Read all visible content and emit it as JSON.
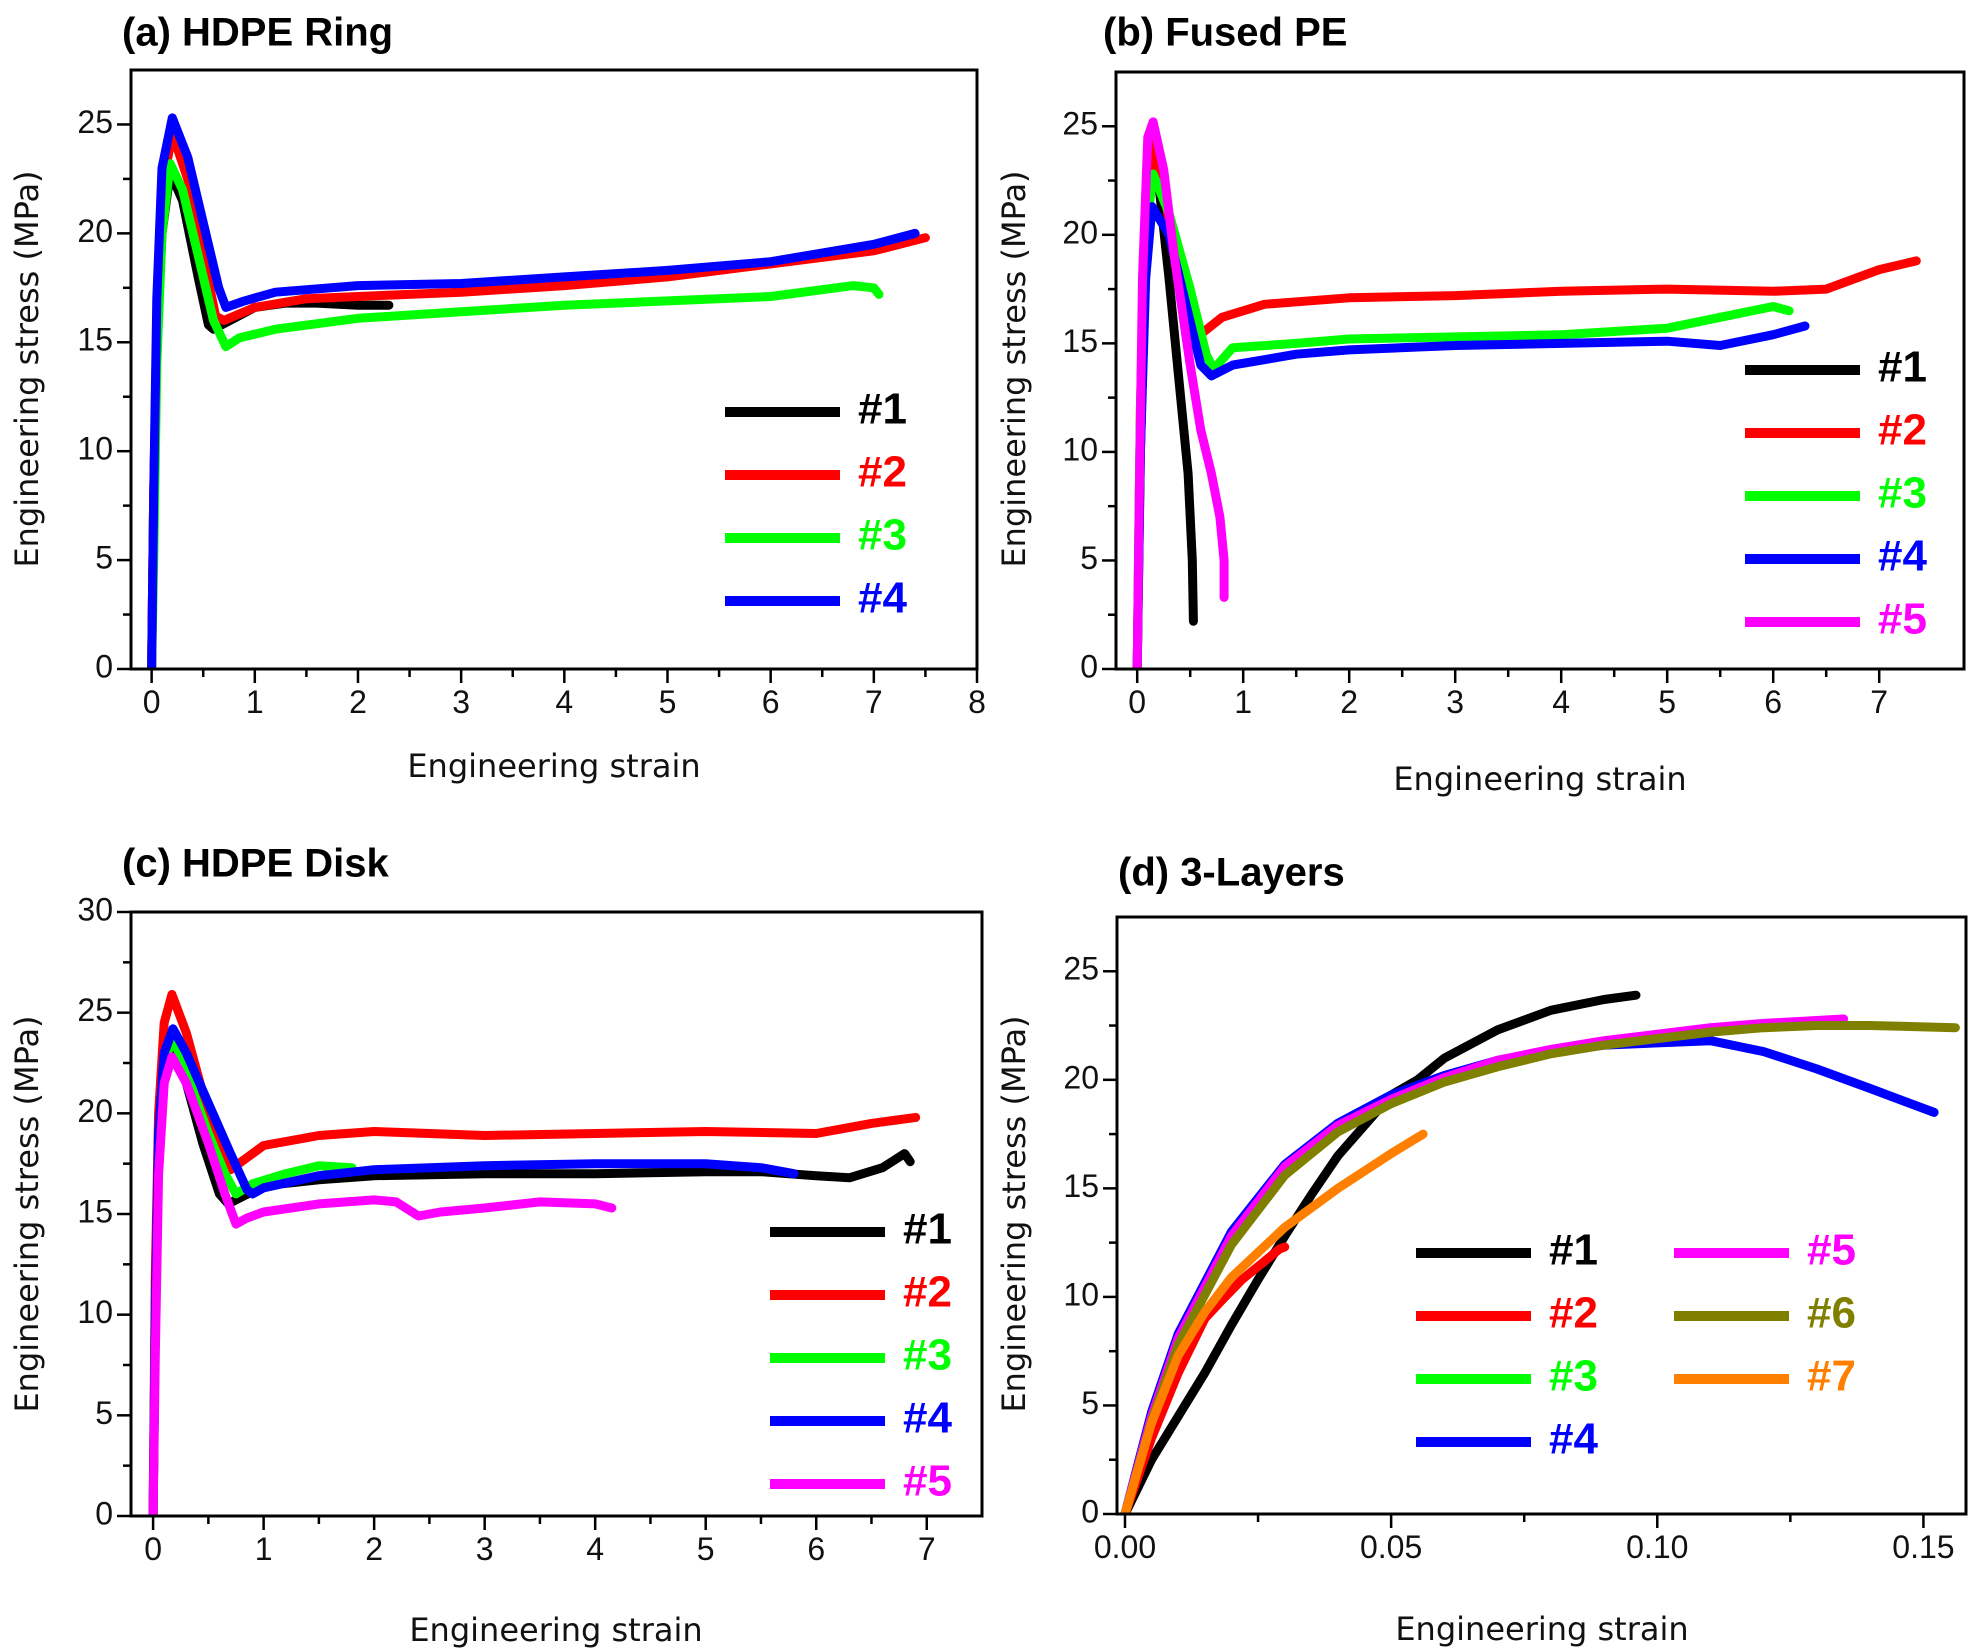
{
  "chart_data": [
    {
      "id": "a",
      "type": "line",
      "title": "(a) HDPE Ring",
      "xlabel": "Engineering strain",
      "ylabel": "Engineering stress (MPa)",
      "xlim": [
        -0.2,
        8
      ],
      "ylim": [
        0,
        27.5
      ],
      "xticks": [
        0,
        1,
        2,
        3,
        4,
        5,
        6,
        7,
        8
      ],
      "yticks": [
        0,
        5,
        10,
        15,
        20,
        25
      ],
      "legend_position": "lower-right",
      "legend_columns": 1,
      "series": [
        {
          "name": "#1",
          "color": "#000000",
          "x": [
            0,
            0.02,
            0.05,
            0.1,
            0.18,
            0.3,
            0.45,
            0.55,
            0.6,
            0.8,
            1.0,
            1.3,
            1.6,
            2.0,
            2.3
          ],
          "y": [
            0,
            8,
            15,
            20,
            22.8,
            21.5,
            18,
            15.8,
            15.6,
            16.1,
            16.6,
            16.8,
            16.8,
            16.7,
            16.7
          ]
        },
        {
          "name": "#2",
          "color": "#ff0000",
          "x": [
            0,
            0.02,
            0.05,
            0.1,
            0.2,
            0.35,
            0.5,
            0.62,
            0.7,
            1.0,
            1.5,
            2.0,
            3.0,
            4.0,
            5.0,
            6.0,
            7.0,
            7.5
          ],
          "y": [
            0,
            8,
            16,
            22,
            24.6,
            22.5,
            19,
            16.2,
            16.0,
            16.6,
            17.0,
            17.1,
            17.3,
            17.6,
            18.0,
            18.6,
            19.2,
            19.8
          ]
        },
        {
          "name": "#3",
          "color": "#00ff00",
          "x": [
            0,
            0.02,
            0.05,
            0.1,
            0.18,
            0.3,
            0.45,
            0.6,
            0.72,
            0.85,
            1.2,
            2.0,
            3.0,
            4.0,
            5.0,
            6.0,
            6.8,
            7.0,
            7.05
          ],
          "y": [
            0,
            5,
            14,
            20,
            23.2,
            22,
            19,
            16,
            14.8,
            15.2,
            15.6,
            16.1,
            16.4,
            16.7,
            16.9,
            17.1,
            17.6,
            17.5,
            17.2
          ]
        },
        {
          "name": "#4",
          "color": "#0000ff",
          "x": [
            0,
            0.02,
            0.05,
            0.1,
            0.2,
            0.35,
            0.5,
            0.65,
            0.72,
            0.9,
            1.2,
            2.0,
            3.0,
            4.0,
            5.0,
            6.0,
            7.0,
            7.4
          ],
          "y": [
            0,
            8,
            17,
            23,
            25.3,
            23.5,
            20.5,
            17.5,
            16.6,
            16.9,
            17.3,
            17.6,
            17.7,
            18.0,
            18.3,
            18.7,
            19.5,
            20.0
          ]
        }
      ]
    },
    {
      "id": "b",
      "type": "line",
      "title": "(b) Fused PE",
      "xlabel": "Engineering strain",
      "ylabel": "Engineering stress (MPa)",
      "xlim": [
        -0.2,
        7.8
      ],
      "ylim": [
        0,
        27.5
      ],
      "xticks": [
        0,
        1,
        2,
        3,
        4,
        5,
        6,
        7
      ],
      "yticks": [
        0,
        5,
        10,
        15,
        20,
        25
      ],
      "legend_position": "lower-right",
      "legend_columns": 1,
      "series": [
        {
          "name": "#1",
          "color": "#000000",
          "x": [
            0,
            0.03,
            0.08,
            0.13,
            0.2,
            0.3,
            0.4,
            0.48,
            0.52,
            0.53
          ],
          "y": [
            0,
            10,
            20,
            23.8,
            22.5,
            18,
            13,
            9,
            5,
            2.2
          ]
        },
        {
          "name": "#2",
          "color": "#ff0000",
          "x": [
            0,
            0.03,
            0.08,
            0.14,
            0.25,
            0.4,
            0.55,
            0.62,
            0.8,
            1.2,
            2.0,
            3.0,
            4.0,
            5.0,
            6.0,
            6.5,
            7.0,
            7.35
          ],
          "y": [
            0,
            12,
            21,
            24.2,
            22,
            18,
            16,
            15.5,
            16.2,
            16.8,
            17.1,
            17.2,
            17.4,
            17.5,
            17.4,
            17.5,
            18.4,
            18.8
          ]
        },
        {
          "name": "#3",
          "color": "#00ff00",
          "x": [
            0,
            0.03,
            0.08,
            0.15,
            0.3,
            0.5,
            0.65,
            0.72,
            0.9,
            1.5,
            2.0,
            3.0,
            4.0,
            5.0,
            5.5,
            6.0,
            6.15
          ],
          "y": [
            0,
            12,
            20,
            22.8,
            21,
            17.5,
            14.5,
            13.8,
            14.8,
            15.0,
            15.2,
            15.3,
            15.4,
            15.7,
            16.2,
            16.7,
            16.5
          ]
        },
        {
          "name": "#4",
          "color": "#0000ff",
          "x": [
            0,
            0.03,
            0.08,
            0.14,
            0.3,
            0.5,
            0.6,
            0.7,
            0.9,
            1.5,
            2.0,
            3.0,
            4.0,
            5.0,
            5.5,
            6.0,
            6.3
          ],
          "y": [
            0,
            10,
            18,
            21.3,
            20,
            16,
            14,
            13.5,
            14.0,
            14.5,
            14.7,
            14.9,
            15.0,
            15.1,
            14.9,
            15.4,
            15.8
          ]
        },
        {
          "name": "#5",
          "color": "#ff00ff",
          "x": [
            0,
            0.02,
            0.05,
            0.1,
            0.15,
            0.25,
            0.35,
            0.5,
            0.6,
            0.7,
            0.78,
            0.82,
            0.82
          ],
          "y": [
            0,
            8,
            18,
            24.5,
            25.2,
            23,
            19,
            14,
            11,
            9,
            7,
            5,
            3.3
          ]
        }
      ]
    },
    {
      "id": "c",
      "type": "line",
      "title": "(c) HDPE Disk",
      "xlabel": "Engineering strain",
      "ylabel": "Engineering stress (MPa)",
      "xlim": [
        -0.2,
        7.5
      ],
      "ylim": [
        0,
        30
      ],
      "xticks": [
        0,
        1,
        2,
        3,
        4,
        5,
        6,
        7
      ],
      "yticks": [
        0,
        5,
        10,
        15,
        20,
        25,
        30
      ],
      "legend_position": "lower-right",
      "legend_columns": 1,
      "series": [
        {
          "name": "#1",
          "color": "#000000",
          "x": [
            0,
            0.02,
            0.05,
            0.1,
            0.18,
            0.3,
            0.45,
            0.6,
            0.68,
            0.75,
            1.0,
            1.5,
            2.0,
            3.0,
            4.0,
            5.0,
            5.5,
            6.0,
            6.3,
            6.6,
            6.8,
            6.85
          ],
          "y": [
            0,
            10,
            18,
            22,
            23.2,
            21.5,
            18.5,
            16,
            15.5,
            15.7,
            16.4,
            16.7,
            16.9,
            17.0,
            17.0,
            17.1,
            17.1,
            16.9,
            16.8,
            17.3,
            18.0,
            17.6
          ]
        },
        {
          "name": "#2",
          "color": "#ff0000",
          "x": [
            0,
            0.02,
            0.05,
            0.1,
            0.17,
            0.3,
            0.45,
            0.6,
            0.7,
            0.85,
            1.0,
            1.5,
            2.0,
            3.0,
            4.0,
            5.0,
            6.0,
            6.5,
            6.9
          ],
          "y": [
            0,
            12,
            20,
            24.5,
            25.9,
            24,
            21,
            18.5,
            17.2,
            17.8,
            18.4,
            18.9,
            19.1,
            18.9,
            19.0,
            19.1,
            19.0,
            19.5,
            19.8
          ]
        },
        {
          "name": "#3",
          "color": "#00ff00",
          "x": [
            0,
            0.02,
            0.05,
            0.1,
            0.18,
            0.3,
            0.5,
            0.65,
            0.75,
            0.9,
            1.2,
            1.5,
            1.8
          ],
          "y": [
            0,
            10,
            18,
            22.5,
            23.8,
            22,
            19,
            17,
            16.0,
            16.5,
            17.0,
            17.4,
            17.3
          ]
        },
        {
          "name": "#4",
          "color": "#0000ff",
          "x": [
            0,
            0.02,
            0.05,
            0.1,
            0.18,
            0.3,
            0.5,
            0.7,
            0.85,
            0.9,
            1.0,
            1.5,
            2.0,
            3.0,
            4.0,
            5.0,
            5.5,
            5.8
          ],
          "y": [
            0,
            10,
            19,
            23,
            24.2,
            23.0,
            20.5,
            18,
            16.2,
            16.0,
            16.3,
            16.9,
            17.2,
            17.4,
            17.5,
            17.5,
            17.3,
            17.0
          ]
        },
        {
          "name": "#5",
          "color": "#ff00ff",
          "x": [
            0,
            0.02,
            0.05,
            0.1,
            0.17,
            0.3,
            0.5,
            0.65,
            0.75,
            0.85,
            1.0,
            1.5,
            2.0,
            2.2,
            2.4,
            2.6,
            3.0,
            3.5,
            4.0,
            4.15
          ],
          "y": [
            0,
            8,
            17,
            21.5,
            22.8,
            21.5,
            18.5,
            16,
            14.5,
            14.8,
            15.1,
            15.5,
            15.7,
            15.6,
            14.9,
            15.1,
            15.3,
            15.6,
            15.5,
            15.3
          ]
        }
      ]
    },
    {
      "id": "d",
      "type": "line",
      "title": "(d) 3-Layers",
      "xlabel": "Engineering strain",
      "ylabel": "Engineering stress (MPa)",
      "xlim": [
        -0.0015,
        0.158
      ],
      "ylim": [
        0,
        27.5
      ],
      "xticks": [
        "0.00",
        "0.05",
        "0.10",
        "0.15"
      ],
      "xtick_values": [
        0,
        0.05,
        0.1,
        0.15
      ],
      "yticks": [
        0,
        5,
        10,
        15,
        20,
        25
      ],
      "legend_position": "lower-right",
      "legend_columns": 2,
      "series": [
        {
          "name": "#1",
          "color": "#000000",
          "x": [
            0,
            0.005,
            0.01,
            0.015,
            0.02,
            0.025,
            0.03,
            0.035,
            0.04,
            0.05,
            0.055,
            0.06,
            0.07,
            0.08,
            0.09,
            0.096
          ],
          "y": [
            0,
            2.5,
            4.5,
            6.5,
            8.7,
            10.8,
            12.8,
            14.7,
            16.5,
            19.3,
            20.0,
            21.0,
            22.3,
            23.2,
            23.7,
            23.9
          ]
        },
        {
          "name": "#2",
          "color": "#ff0000",
          "x": [
            0,
            0.005,
            0.01,
            0.015,
            0.018,
            0.022,
            0.026,
            0.029,
            0.03
          ],
          "y": [
            0,
            3.5,
            6.5,
            9,
            9.8,
            10.8,
            11.6,
            12.2,
            12.3
          ]
        },
        {
          "name": "#3",
          "color": "#00ff00",
          "x": [
            0,
            0.005,
            0.01,
            0.02,
            0.03,
            0.04,
            0.05,
            0.06,
            0.07
          ],
          "y": [
            0,
            4.3,
            7.8,
            12.5,
            15.8,
            17.8,
            19.0,
            20.0,
            20.6
          ]
        },
        {
          "name": "#4",
          "color": "#0000ff",
          "x": [
            0,
            0.005,
            0.01,
            0.02,
            0.03,
            0.04,
            0.05,
            0.06,
            0.07,
            0.08,
            0.09,
            0.1,
            0.11,
            0.12,
            0.13,
            0.14,
            0.152
          ],
          "y": [
            0,
            4.7,
            8.3,
            13,
            16.1,
            18.0,
            19.3,
            20.2,
            20.9,
            21.3,
            21.6,
            21.7,
            21.8,
            21.3,
            20.5,
            19.6,
            18.5
          ]
        },
        {
          "name": "#5",
          "color": "#ff00ff",
          "x": [
            0,
            0.005,
            0.01,
            0.02,
            0.03,
            0.04,
            0.05,
            0.06,
            0.07,
            0.08,
            0.09,
            0.1,
            0.11,
            0.12,
            0.135
          ],
          "y": [
            0,
            4.5,
            8.1,
            12.8,
            16.0,
            17.9,
            19.1,
            20.1,
            20.9,
            21.4,
            21.8,
            22.1,
            22.4,
            22.6,
            22.8
          ]
        },
        {
          "name": "#6",
          "color": "#808000",
          "x": [
            0,
            0.005,
            0.01,
            0.02,
            0.03,
            0.04,
            0.05,
            0.06,
            0.07,
            0.08,
            0.09,
            0.1,
            0.11,
            0.12,
            0.13,
            0.14,
            0.156
          ],
          "y": [
            0,
            4.3,
            7.8,
            12.4,
            15.6,
            17.6,
            18.9,
            19.9,
            20.6,
            21.2,
            21.6,
            21.9,
            22.2,
            22.4,
            22.5,
            22.5,
            22.4
          ]
        },
        {
          "name": "#7",
          "color": "#ff8000",
          "x": [
            0,
            0.005,
            0.01,
            0.015,
            0.02,
            0.03,
            0.04,
            0.05,
            0.056
          ],
          "y": [
            0,
            4.2,
            7.3,
            9.3,
            10.9,
            13.2,
            15.0,
            16.6,
            17.5
          ]
        }
      ]
    }
  ]
}
